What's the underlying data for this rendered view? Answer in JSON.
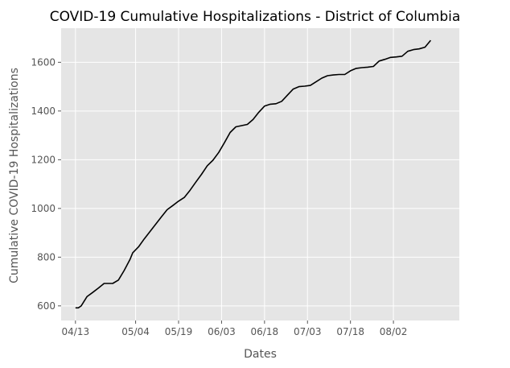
{
  "chart_data": {
    "type": "line",
    "title": "COVID-19 Cumulative Hospitalizations - District of Columbia",
    "xlabel": "Dates",
    "ylabel": "Cumulative COVID-19 Hospitalizations",
    "xlim": [
      "2020-04-08",
      "2020-08-25"
    ],
    "ylim": [
      540,
      1740
    ],
    "grid": true,
    "background_color": "#e5e5e5",
    "line_color": "#000000",
    "x_ticks": [
      {
        "date": "2020-04-13",
        "label": "04/13"
      },
      {
        "date": "2020-05-04",
        "label": "05/04"
      },
      {
        "date": "2020-05-19",
        "label": "05/19"
      },
      {
        "date": "2020-06-03",
        "label": "06/03"
      },
      {
        "date": "2020-06-18",
        "label": "06/18"
      },
      {
        "date": "2020-07-03",
        "label": "07/03"
      },
      {
        "date": "2020-07-18",
        "label": "07/18"
      },
      {
        "date": "2020-08-02",
        "label": "08/02"
      }
    ],
    "y_ticks": [
      600,
      800,
      1000,
      1200,
      1400,
      1600
    ],
    "series": [
      {
        "x": [
          "2020-04-13",
          "2020-04-14",
          "2020-04-15",
          "2020-04-17",
          "2020-04-19",
          "2020-04-21",
          "2020-04-23",
          "2020-04-24",
          "2020-04-26",
          "2020-04-28",
          "2020-04-30",
          "2020-05-02",
          "2020-05-03",
          "2020-05-05",
          "2020-05-07",
          "2020-05-09",
          "2020-05-11",
          "2020-05-13",
          "2020-05-15",
          "2020-05-17",
          "2020-05-19",
          "2020-05-21",
          "2020-05-23",
          "2020-05-25",
          "2020-05-27",
          "2020-05-29",
          "2020-05-31",
          "2020-06-02",
          "2020-06-04",
          "2020-06-06",
          "2020-06-08",
          "2020-06-10",
          "2020-06-12",
          "2020-06-14",
          "2020-06-16",
          "2020-06-18",
          "2020-06-20",
          "2020-06-22",
          "2020-06-24",
          "2020-06-26",
          "2020-06-28",
          "2020-06-30",
          "2020-07-02",
          "2020-07-04",
          "2020-07-06",
          "2020-07-08",
          "2020-07-10",
          "2020-07-12",
          "2020-07-14",
          "2020-07-16",
          "2020-07-18",
          "2020-07-20",
          "2020-07-22",
          "2020-07-24",
          "2020-07-26",
          "2020-07-28",
          "2020-07-30",
          "2020-08-01",
          "2020-08-03",
          "2020-08-05",
          "2020-08-07",
          "2020-08-09",
          "2020-08-11",
          "2020-08-13",
          "2020-08-15"
        ],
        "y": [
          592,
          592,
          600,
          638,
          655,
          673,
          692,
          692,
          692,
          706,
          745,
          790,
          818,
          842,
          875,
          905,
          935,
          965,
          995,
          1012,
          1030,
          1045,
          1075,
          1108,
          1140,
          1175,
          1198,
          1230,
          1270,
          1312,
          1335,
          1340,
          1345,
          1365,
          1395,
          1420,
          1428,
          1430,
          1440,
          1465,
          1490,
          1500,
          1502,
          1505,
          1520,
          1535,
          1545,
          1548,
          1550,
          1550,
          1565,
          1575,
          1578,
          1580,
          1583,
          1605,
          1612,
          1620,
          1622,
          1625,
          1645,
          1652,
          1655,
          1662,
          1690
        ]
      }
    ]
  }
}
